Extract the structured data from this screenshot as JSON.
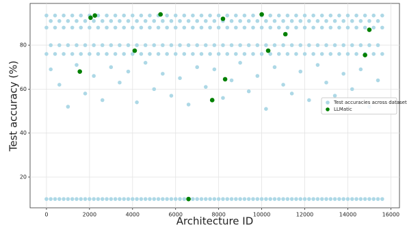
{
  "chart_data": {
    "type": "scatter",
    "xlabel": "Architecture ID",
    "ylabel": "Test accuracy (%)",
    "xlim": [
      -760,
      16400
    ],
    "ylim": [
      6,
      99
    ],
    "xticks": [
      0,
      2000,
      4000,
      6000,
      8000,
      10000,
      12000,
      14000,
      16000
    ],
    "yticks": [
      20,
      40,
      60,
      80
    ],
    "grid": true,
    "legend": "center right",
    "series": [
      {
        "name": "Test accuracies across dataset",
        "color": "#add8e6",
        "x": [
          0,
          400,
          800,
          1200,
          1600,
          2000,
          2400,
          2800,
          3200,
          3600,
          4000,
          4400,
          4800,
          5200,
          5600,
          6000,
          6400,
          6800,
          7200,
          7600,
          8000,
          8400,
          8800,
          9200,
          9600,
          10000,
          10400,
          10800,
          11200,
          11600,
          12000,
          12400,
          12800,
          13200,
          13600,
          14000,
          14400,
          14800,
          15200,
          15600,
          200,
          600,
          1000,
          1400,
          1800,
          2200,
          2600,
          3000,
          3400,
          3800,
          4200,
          4600,
          5000,
          5400,
          5800,
          6200,
          6600,
          7000,
          7400,
          7800,
          8200,
          8600,
          9000,
          9400,
          9800,
          10200,
          10600,
          11000,
          11400,
          11800,
          12200,
          12600,
          13000,
          13400,
          13800,
          14200,
          14600,
          15000,
          15400,
          0,
          400,
          800,
          1200,
          1600,
          2000,
          2400,
          2800,
          3200,
          3600,
          4000,
          4400,
          4800,
          5200,
          5600,
          6000,
          6400,
          6800,
          7200,
          7600,
          8000,
          8400,
          8800,
          9200,
          9600,
          10000,
          10400,
          10800,
          11200,
          11600,
          12000,
          12400,
          12800,
          13200,
          13600,
          14000,
          14400,
          14800,
          15200,
          15600,
          200,
          600,
          1000,
          1400,
          1800,
          2200,
          2600,
          3000,
          3400,
          3800,
          4200,
          4600,
          5000,
          5400,
          5800,
          6200,
          6600,
          7000,
          7400,
          7800,
          8200,
          8600,
          9000,
          9400,
          9800,
          10200,
          10600,
          11000,
          11400,
          11800,
          12200,
          12600,
          13000,
          13400,
          13800,
          14200,
          14600,
          15000,
          15400,
          0,
          400,
          800,
          1200,
          1600,
          2000,
          2400,
          2800,
          3200,
          3600,
          4000,
          4400,
          4800,
          5200,
          5600,
          6000,
          6400,
          6800,
          7200,
          7600,
          8000,
          8400,
          8800,
          9200,
          9600,
          10000,
          10400,
          10800,
          11200,
          11600,
          12000,
          12400,
          12800,
          13200,
          13600,
          14000,
          14400,
          14800,
          15200,
          15600,
          0,
          400,
          800,
          1200,
          1600,
          2000,
          2400,
          2800,
          3200,
          3600,
          4000,
          4400,
          4800,
          5200,
          5600,
          6000,
          6400,
          6800,
          7200,
          7600,
          8000,
          8400,
          8800,
          9200,
          9600,
          10000,
          10400,
          10800,
          11200,
          11600,
          12000,
          12400,
          12800,
          13200,
          13600,
          14000,
          14400,
          14800,
          15200,
          15600,
          200,
          600,
          1000,
          1400,
          1800,
          2200,
          2600,
          3000,
          3400,
          3800,
          4200,
          4600,
          5000,
          5400,
          5800,
          6200,
          6600,
          7000,
          7400,
          7800,
          8200,
          8600,
          9000,
          9400,
          9800,
          10200,
          10600,
          11000,
          11400,
          11800,
          12200,
          12600,
          13000,
          13400,
          13800,
          14200,
          14600,
          15000,
          15400,
          200,
          600,
          1000,
          1400,
          1800,
          2200,
          2600,
          3000,
          3400,
          3800,
          4200,
          4600,
          5000,
          5400,
          5800,
          6200,
          6600,
          7000,
          7400,
          7800,
          8200,
          8600,
          9000,
          9400,
          9800,
          10200,
          10600,
          11000,
          11400,
          11800,
          12200,
          12600,
          13000,
          13400,
          13800,
          14200,
          14600,
          15000,
          15400
        ],
        "values": [
          93.5,
          93.5,
          93.5,
          93.5,
          93.5,
          93.5,
          93.5,
          93.5,
          93.5,
          93.5,
          93.5,
          93.5,
          93.5,
          93.5,
          93.5,
          93.5,
          93.5,
          93.5,
          93.5,
          93.5,
          93.5,
          93.5,
          93.5,
          93.5,
          93.5,
          93.5,
          93.5,
          93.5,
          93.5,
          93.5,
          93.5,
          93.5,
          93.5,
          93.5,
          93.5,
          93.5,
          93.5,
          93.5,
          93.5,
          93.5,
          91,
          91,
          91,
          91,
          91,
          91,
          91,
          91,
          91,
          91,
          91,
          91,
          91,
          91,
          91,
          91,
          91,
          91,
          91,
          91,
          91,
          91,
          91,
          91,
          91,
          91,
          91,
          91,
          91,
          91,
          91,
          91,
          91,
          91,
          91,
          91,
          91,
          91,
          91,
          88,
          88,
          88,
          88,
          88,
          88,
          88,
          88,
          88,
          88,
          88,
          88,
          88,
          88,
          88,
          88,
          88,
          88,
          88,
          88,
          88,
          88,
          88,
          88,
          88,
          88,
          88,
          88,
          88,
          88,
          88,
          88,
          88,
          88,
          88,
          88,
          88,
          88,
          88,
          88,
          80,
          80,
          80,
          80,
          80,
          80,
          80,
          80,
          80,
          80,
          80,
          80,
          80,
          80,
          80,
          80,
          80,
          80,
          80,
          80,
          80,
          80,
          80,
          80,
          80,
          80,
          80,
          80,
          80,
          80,
          80,
          80,
          80,
          80,
          80,
          80,
          80,
          80,
          80,
          76,
          76,
          76,
          76,
          76,
          76,
          76,
          76,
          76,
          76,
          76,
          76,
          76,
          76,
          76,
          76,
          76,
          76,
          76,
          76,
          76,
          76,
          76,
          76,
          76,
          76,
          76,
          76,
          76,
          76,
          76,
          76,
          76,
          76,
          76,
          76,
          76,
          76,
          76,
          76,
          10,
          10,
          10,
          10,
          10,
          10,
          10,
          10,
          10,
          10,
          10,
          10,
          10,
          10,
          10,
          10,
          10,
          10,
          10,
          10,
          10,
          10,
          10,
          10,
          10,
          10,
          10,
          10,
          10,
          10,
          10,
          10,
          10,
          10,
          10,
          10,
          10,
          10,
          10,
          10,
          10,
          10,
          10,
          10,
          10,
          10,
          10,
          10,
          10,
          10,
          10,
          10,
          10,
          10,
          10,
          10,
          10,
          10,
          10,
          10,
          10,
          10,
          10,
          10,
          10,
          10,
          10,
          10,
          10,
          10,
          10,
          10,
          10,
          10,
          10,
          10,
          10,
          10,
          10,
          69,
          62,
          52,
          71,
          58,
          66,
          55,
          70,
          63,
          68,
          54,
          72,
          60,
          67,
          57,
          65,
          53,
          70,
          61,
          69,
          56,
          64,
          72,
          59,
          66,
          51,
          70,
          62,
          58,
          68,
          55,
          71,
          63,
          57,
          67,
          60,
          69,
          52,
          64
        ]
      },
      {
        "name": "LLMatic",
        "color": "#008000",
        "x": [
          2050,
          2250,
          5300,
          8200,
          10000,
          11100,
          15000,
          4100,
          10300,
          14800,
          1550,
          8300,
          7700,
          6600
        ],
        "values": [
          92.5,
          93.5,
          94,
          92,
          94,
          85,
          87,
          77.5,
          77.5,
          75.5,
          68,
          64.5,
          55,
          10
        ]
      }
    ]
  }
}
